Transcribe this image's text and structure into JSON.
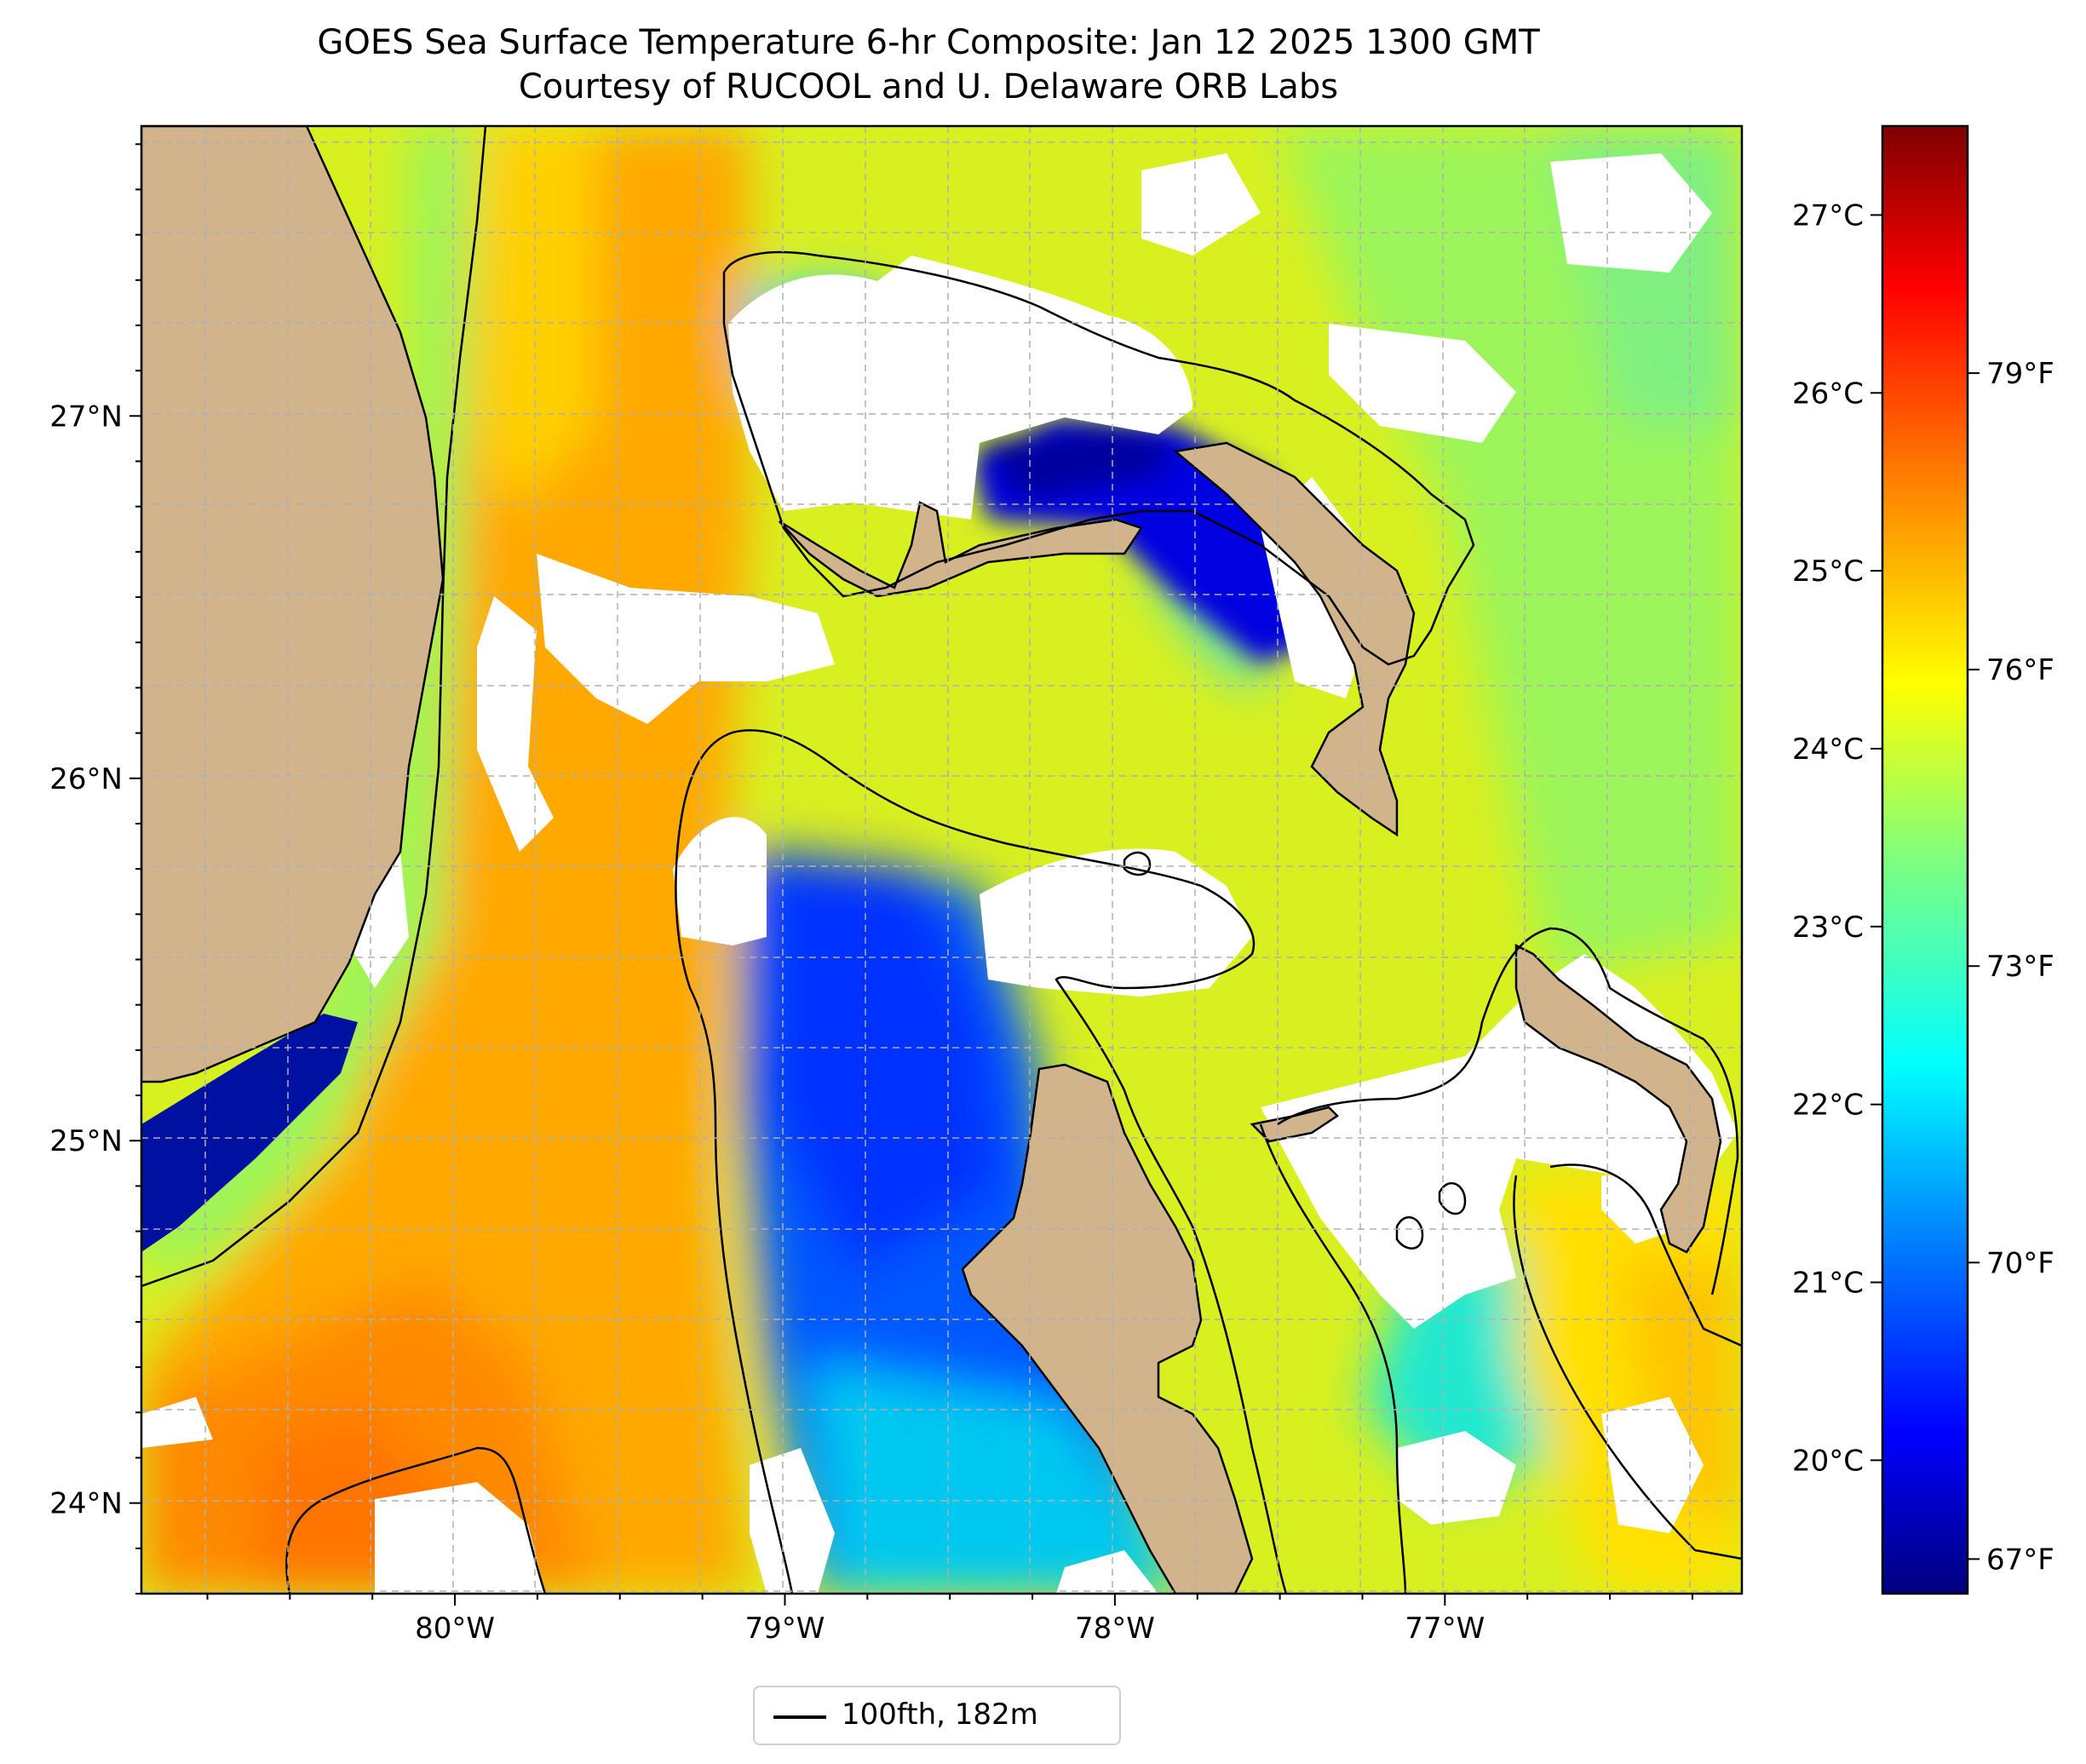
{
  "title": {
    "line1": "GOES Sea Surface Temperature 6-hr Composite: Jan 12 2025 1300 GMT",
    "line2": "Courtesy of RUCOOL and U. Delaware ORB Labs"
  },
  "map": {
    "lon_range": [
      -80.95,
      -76.1
    ],
    "lat_range": [
      23.75,
      27.8
    ],
    "lon_ticks": [
      -80,
      -79,
      -78,
      -77
    ],
    "lon_tick_labels": [
      "80°W",
      "79°W",
      "78°W",
      "77°W"
    ],
    "lat_ticks": [
      24,
      25,
      26,
      27
    ],
    "lat_tick_labels": [
      "24°N",
      "25°N",
      "26°N",
      "27°N"
    ],
    "grid": true,
    "land_color": "#d2b48c",
    "no_data_color": "#ffffff",
    "contour_color": "#000000"
  },
  "colorbar": {
    "colormap": "jet",
    "celsius_range": [
      19.25,
      27.5
    ],
    "celsius_ticks": [
      20,
      21,
      22,
      23,
      24,
      25,
      26,
      27
    ],
    "celsius_tick_labels": [
      "20°C",
      "21°C",
      "22°C",
      "23°C",
      "24°C",
      "25°C",
      "26°C",
      "27°C"
    ],
    "fahrenheit_ticks": [
      67,
      70,
      73,
      76,
      79
    ],
    "fahrenheit_tick_labels": [
      "67°F",
      "70°F",
      "73°F",
      "76°F",
      "79°F"
    ],
    "colors": [
      "#00007f",
      "#0000ff",
      "#007fff",
      "#00ffff",
      "#7fff7f",
      "#ffff00",
      "#ff7f00",
      "#ff0000",
      "#7f0000"
    ]
  },
  "legend": {
    "label": "100fth, 182m",
    "location": "below map"
  }
}
